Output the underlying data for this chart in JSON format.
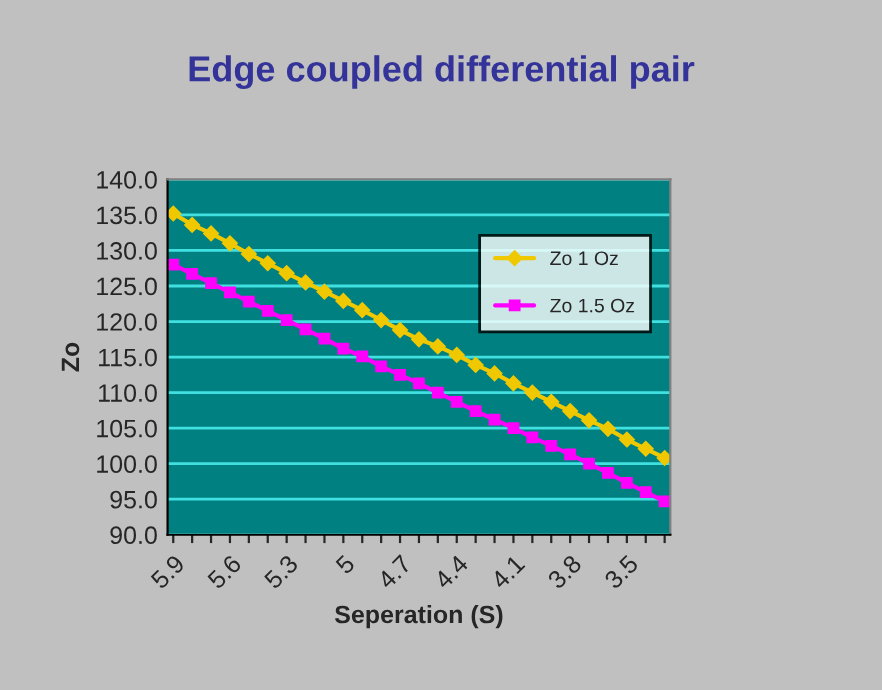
{
  "chart_data": {
    "type": "line",
    "title": "Edge coupled differential pair",
    "xlabel": "Seperation (S)",
    "ylabel": "Zo",
    "categories": [
      "5.9",
      null,
      null,
      "5.6",
      null,
      null,
      "5.3",
      null,
      null,
      "5",
      null,
      null,
      "4.7",
      null,
      null,
      "4.4",
      null,
      null,
      "4.1",
      null,
      null,
      "3.8",
      null,
      null,
      "3.5",
      null,
      null
    ],
    "series": [
      {
        "name": "Zo 1 Oz",
        "color": "#f0c800",
        "marker": "diamond",
        "values": [
          135.2,
          133.6,
          132.4,
          131.0,
          129.5,
          128.2,
          126.8,
          125.5,
          124.2,
          122.9,
          121.6,
          120.2,
          118.8,
          117.5,
          116.5,
          115.3,
          113.9,
          112.7,
          111.3,
          110.0,
          108.7,
          107.4,
          106.1,
          104.9,
          103.4,
          102.1,
          100.8
        ]
      },
      {
        "name": "Zo 1.5 Oz",
        "color": "#ff00ff",
        "marker": "square",
        "values": [
          128.0,
          126.7,
          125.4,
          124.1,
          122.8,
          121.5,
          120.2,
          118.9,
          117.6,
          116.2,
          115.1,
          113.7,
          112.5,
          111.3,
          110.0,
          108.7,
          107.4,
          106.2,
          105.0,
          103.7,
          102.5,
          101.3,
          100.0,
          98.7,
          97.3,
          96.0,
          94.7
        ]
      }
    ],
    "ylim": [
      90,
      140
    ],
    "yticks": [
      {
        "value": 90,
        "label": "90.0"
      },
      {
        "value": 95,
        "label": "95.0"
      },
      {
        "value": 100,
        "label": "100.0"
      },
      {
        "value": 105,
        "label": "105.0"
      },
      {
        "value": 110,
        "label": "110.0"
      },
      {
        "value": 115,
        "label": "115.0"
      },
      {
        "value": 120,
        "label": "120.0"
      },
      {
        "value": 125,
        "label": "125.0"
      },
      {
        "value": 130,
        "label": "130.0"
      },
      {
        "value": 135,
        "label": "135.0"
      },
      {
        "value": 140,
        "label": "140.0"
      }
    ],
    "grid": "y",
    "legend": "upper right",
    "line_style": "solid"
  }
}
